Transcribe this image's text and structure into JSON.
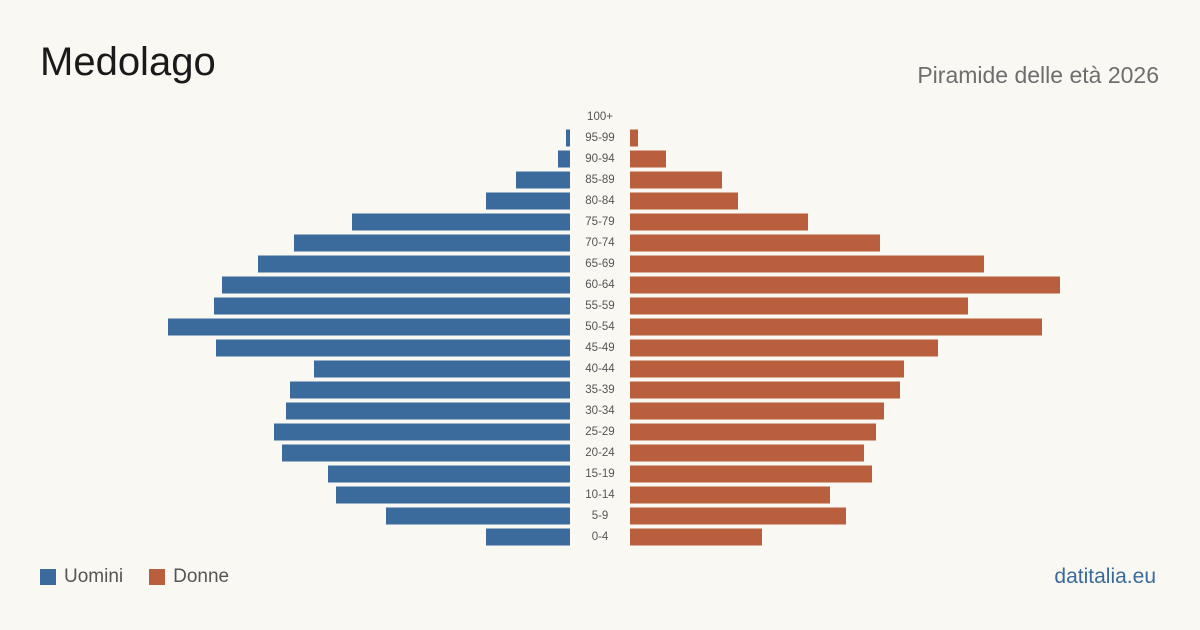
{
  "header": {
    "title": "Medolago",
    "subtitle": "Piramide delle età 2026"
  },
  "legend": {
    "men_label": "Uomini",
    "women_label": "Donne"
  },
  "brand": "datitalia.eu",
  "colors": {
    "background": "#faf8f3",
    "men": "#3b6b9c",
    "women": "#b95f3e"
  },
  "chart_data": {
    "type": "bar",
    "orientation": "horizontal-population-pyramid",
    "title": "Medolago",
    "subtitle": "Piramide delle età 2026",
    "categories": [
      "0-4",
      "5-9",
      "10-14",
      "15-19",
      "20-24",
      "25-29",
      "30-34",
      "35-39",
      "40-44",
      "45-49",
      "50-54",
      "55-59",
      "60-64",
      "65-69",
      "70-74",
      "75-79",
      "80-84",
      "85-89",
      "90-94",
      "95-99",
      "100+"
    ],
    "series": [
      {
        "name": "Uomini",
        "color": "#3b6b9c",
        "values": [
          42,
          92,
          117,
          121,
          144,
          148,
          142,
          140,
          128,
          177,
          201,
          178,
          174,
          156,
          138,
          109,
          42,
          27,
          6,
          2,
          0
        ]
      },
      {
        "name": "Donne",
        "color": "#b95f3e",
        "values": [
          66,
          108,
          100,
          121,
          117,
          123,
          127,
          135,
          137,
          154,
          206,
          169,
          215,
          177,
          125,
          89,
          54,
          46,
          18,
          4,
          0
        ]
      }
    ],
    "legend_position": "bottom-left",
    "grid": false
  }
}
